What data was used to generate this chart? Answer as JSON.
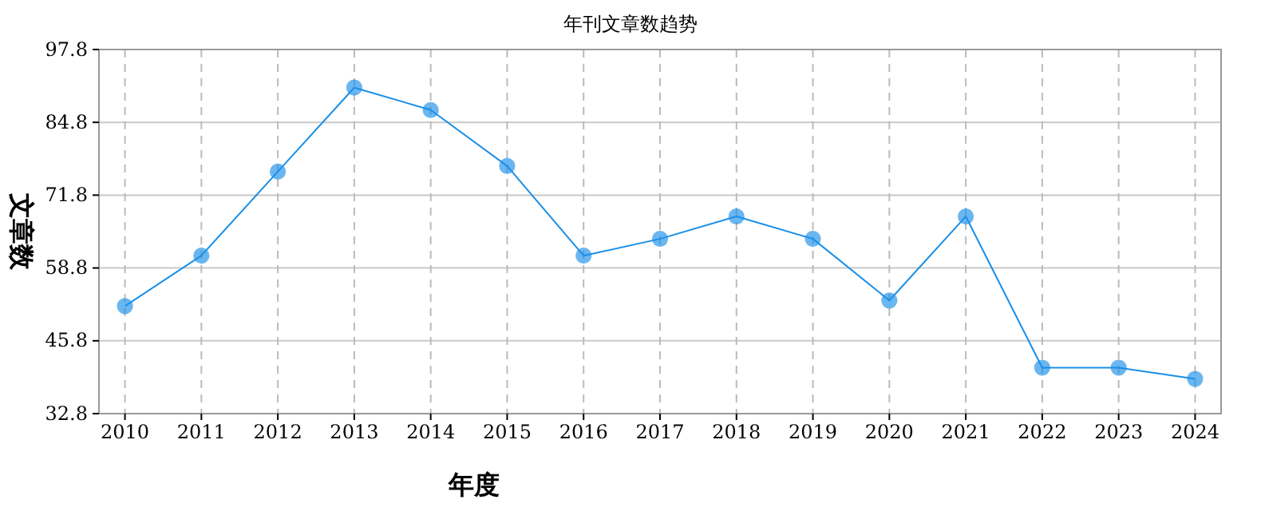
{
  "chart_data": {
    "type": "line",
    "title": "年刊文章数趋势",
    "xlabel": "年度",
    "ylabel": "文章数",
    "categories": [
      "2010",
      "2011",
      "2012",
      "2013",
      "2014",
      "2015",
      "2016",
      "2017",
      "2018",
      "2019",
      "2020",
      "2021",
      "2022",
      "2023",
      "2024"
    ],
    "series": [
      {
        "color": "#1a8fe8",
        "values": [
          52,
          61,
          76,
          91,
          87,
          77,
          61,
          64,
          68,
          64,
          53,
          68,
          41,
          41,
          39
        ]
      }
    ],
    "ylim": [
      32.8,
      97.8
    ],
    "yticks": [
      32.8,
      45.8,
      58.8,
      71.8,
      84.8,
      97.8
    ],
    "grid": true,
    "marker": "circle",
    "line_style": "solid"
  }
}
